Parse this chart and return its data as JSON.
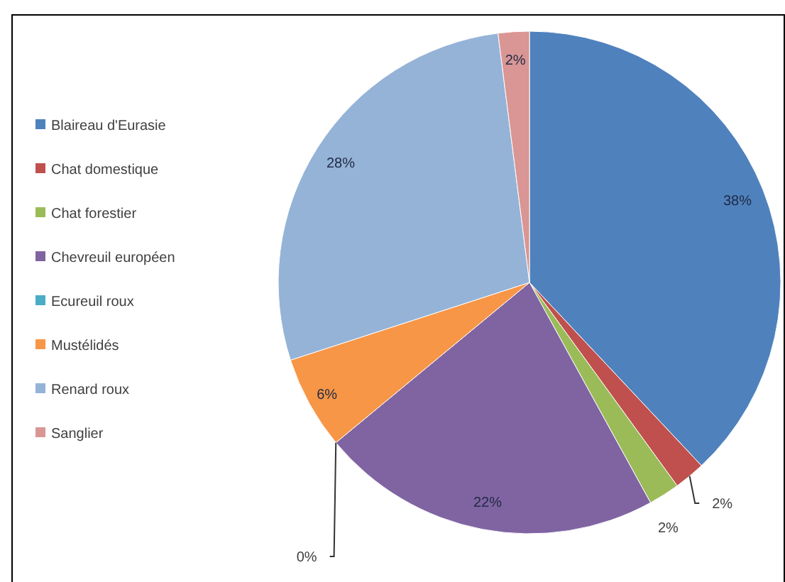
{
  "chart_data": {
    "type": "pie",
    "categories": [
      "Blaireau d'Eurasie",
      "Chat domestique",
      "Chat forestier",
      "Chevreuil européen",
      "Ecureuil roux",
      "Mustélidés",
      "Renard roux",
      "Sanglier"
    ],
    "values": [
      38,
      2,
      2,
      22,
      0,
      6,
      28,
      2
    ],
    "value_labels": [
      "38%",
      "2%",
      "2%",
      "22%",
      "0%",
      "6%",
      "28%",
      "2%"
    ],
    "colors": [
      "#4f81bd",
      "#c0504d",
      "#9bbb59",
      "#8064a2",
      "#4bacc6",
      "#f79646",
      "#95b3d7",
      "#d99694"
    ],
    "legend": "left"
  }
}
